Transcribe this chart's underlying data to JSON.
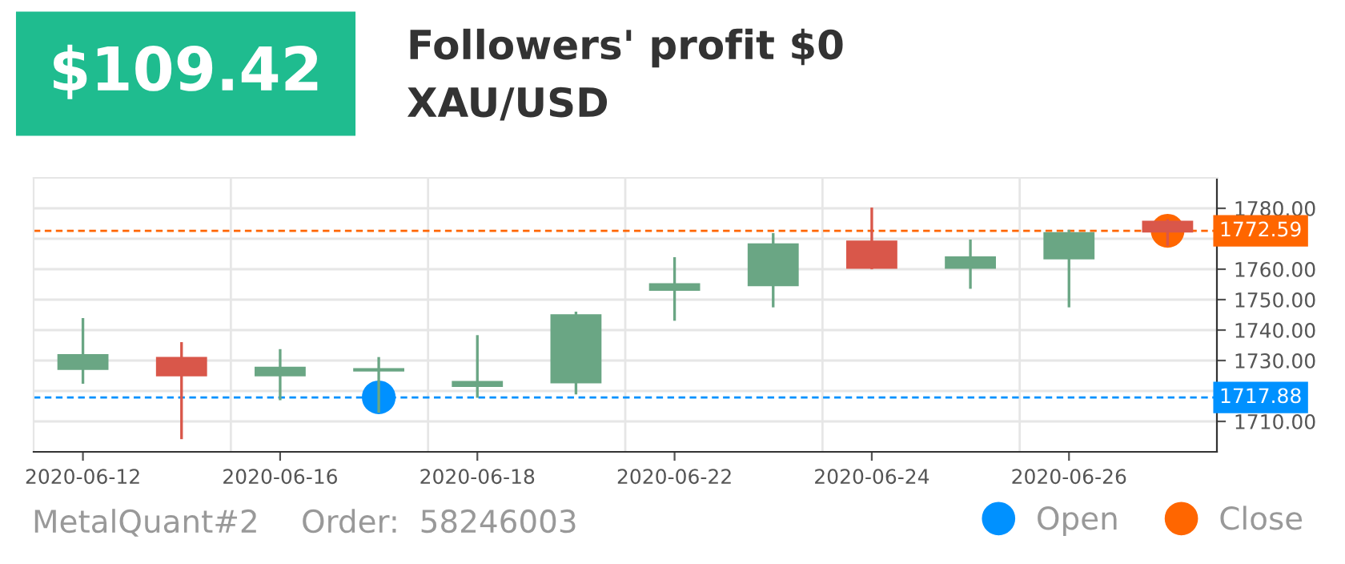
{
  "chart_data": {
    "type": "candlestick",
    "title": "Followers' profit $0",
    "subtitle": "XAU/USD",
    "annotations": [
      "$109.42",
      "MetalQuant#2",
      "Order:  58246003"
    ],
    "categories": [
      "2020-06-12",
      null,
      "2020-06-16",
      null,
      "2020-06-18",
      null,
      "2020-06-22",
      null,
      "2020-06-24",
      null,
      "2020-06-26",
      null
    ],
    "ohlc": [
      [
        1727.2,
        1743.5,
        1722.8,
        1731.8
      ],
      [
        1730.9,
        1735.6,
        1704.6,
        1725.1
      ],
      [
        1725.1,
        1733.3,
        1717.4,
        1727.7
      ],
      [
        1726.7,
        1730.7,
        1713.3,
        1727.2
      ],
      [
        1721.6,
        1737.9,
        1718.2,
        1723.0
      ],
      [
        1722.8,
        1745.6,
        1719.3,
        1744.9
      ],
      [
        1753.2,
        1763.5,
        1743.5,
        1755.1
      ],
      [
        1754.7,
        1771.4,
        1747.9,
        1768.2
      ],
      [
        1769.1,
        1779.8,
        1760.4,
        1760.4
      ],
      [
        1760.4,
        1769.3,
        1754.0,
        1763.9
      ],
      [
        1763.5,
        1772.5,
        1747.9,
        1771.9
      ],
      [
        1775.6,
        1776.0,
        1768.1,
        1772.3
      ]
    ],
    "colors": [
      "#6aa684",
      "#d9574a",
      "#6aa684",
      "#6aa684",
      "#6aa684",
      "#6aa684",
      "#6aa684",
      "#6aa684",
      "#d9574a",
      "#6aa684",
      "#6aa684",
      "#d9574a"
    ],
    "series": [
      {
        "name": "Open",
        "type": "scatter",
        "color": "#0091ff",
        "values": [
          null,
          null,
          null,
          1717.9,
          null,
          null,
          null,
          null,
          null,
          null,
          null,
          null
        ]
      },
      {
        "name": "Close",
        "type": "scatter",
        "color": "#ff6600",
        "values": [
          null,
          null,
          null,
          null,
          null,
          null,
          null,
          null,
          null,
          null,
          null,
          1772.6
        ]
      }
    ],
    "ylim": [
      1700,
      1790
    ],
    "yticks": [
      {
        "value": 1710,
        "label": "1710.00"
      },
      {
        "value": 1720,
        "label": null
      },
      {
        "value": 1730,
        "label": "1730.00"
      },
      {
        "value": 1740,
        "label": "1740.00"
      },
      {
        "value": 1750,
        "label": "1750.00"
      },
      {
        "value": 1760,
        "label": "1760.00"
      },
      {
        "value": 1770,
        "label": null
      },
      {
        "value": 1780,
        "label": "1780.00"
      }
    ],
    "ref_lines": [
      {
        "axis": "y",
        "value": 1772.59,
        "label": "1772.59",
        "color": "#ff6600",
        "line_style": "dashed"
      },
      {
        "axis": "y",
        "value": 1717.88,
        "label": "1717.88",
        "color": "#0091ff",
        "line_style": "dashed"
      }
    ],
    "grid": true,
    "marker": "circle",
    "legend": "bottom right"
  }
}
